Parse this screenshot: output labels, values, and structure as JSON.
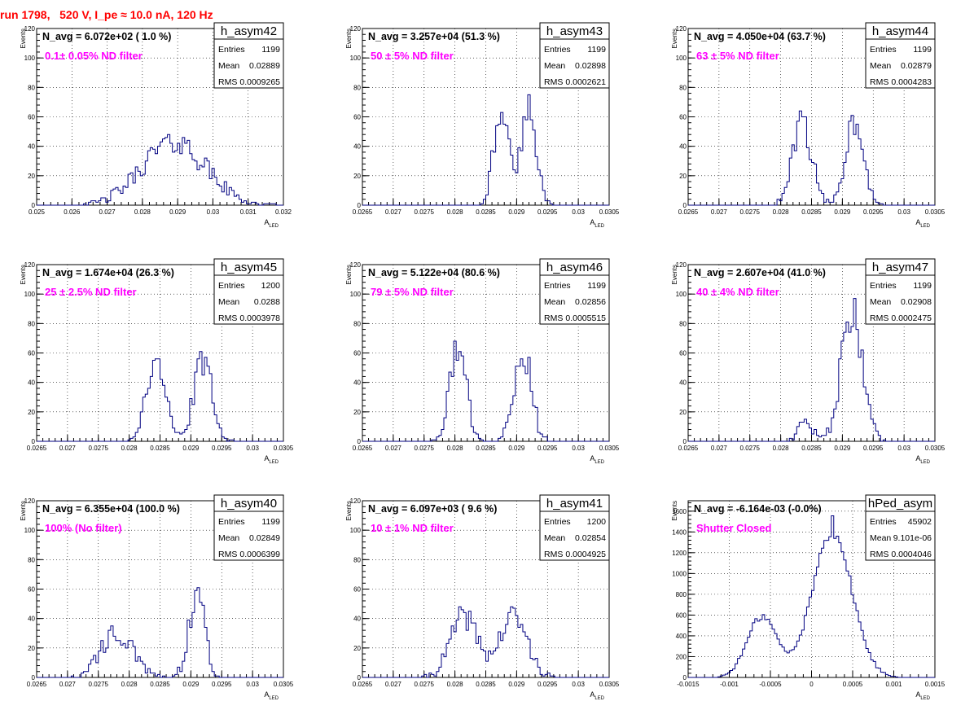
{
  "page": {
    "title": "run 1798,   520 V, I_pe ≈ 10.0 nA, 120 Hz",
    "colors": {
      "title": "#ff0000",
      "annotation": "#ff00ff",
      "histogram": "#000080",
      "grid": "#000000"
    }
  },
  "labels": {
    "ylabel": "Events",
    "xlabel_main": "A",
    "xlabel_sub": "LED",
    "entries": "Entries",
    "mean": "Mean",
    "rms": "RMS"
  },
  "chart_data": [
    {
      "type": "histogram",
      "name": "h_asym42",
      "navg": "N_avg = 6.072e+02 ( 1.0 %)",
      "note": "0.1± 0.05% ND filter",
      "stats": {
        "entries": "1199",
        "mean": "0.02889",
        "rms": "0.0009265"
      },
      "xlim": [
        0.025,
        0.032
      ],
      "ylim": [
        0,
        120
      ],
      "xticks": [
        0.025,
        0.026,
        0.027,
        0.028,
        0.029,
        0.03,
        0.031,
        0.032
      ],
      "xticklabels": [
        "0.025",
        "0.026",
        "0.027",
        "0.028",
        "0.029",
        "0.03",
        "0.031",
        "0.032"
      ],
      "yticks": [
        0,
        20,
        40,
        60,
        80,
        100,
        120
      ],
      "bin_width": 7e-05,
      "components": [
        {
          "mean": 0.02889,
          "sigma": 0.0009,
          "weight": 1.0
        }
      ],
      "peak": 48,
      "seed": 42
    },
    {
      "type": "histogram",
      "name": "h_asym43",
      "navg": "N_avg = 3.257e+04 (51.3 %)",
      "note": "50 ± 5% ND filter",
      "stats": {
        "entries": "1199",
        "mean": "0.02898",
        "rms": "0.0002621"
      },
      "xlim": [
        0.0265,
        0.0305
      ],
      "ylim": [
        0,
        120
      ],
      "xticks": [
        0.0265,
        0.027,
        0.0275,
        0.028,
        0.0285,
        0.029,
        0.0295,
        0.03,
        0.0305
      ],
      "xticklabels": [
        "0.0265",
        "0.027",
        "0.0275",
        "0.028",
        "0.0285",
        "0.029",
        "0.0295",
        "0.03",
        "0.0305"
      ],
      "yticks": [
        0,
        20,
        40,
        60,
        80,
        100,
        120
      ],
      "bin_width": 4e-05,
      "components": [
        {
          "mean": 0.02875,
          "sigma": 0.00012,
          "weight": 1.0
        },
        {
          "mean": 0.0292,
          "sigma": 0.00012,
          "weight": 1.0
        }
      ],
      "peak": 75,
      "seed": 43
    },
    {
      "type": "histogram",
      "name": "h_asym44",
      "navg": "N_avg = 4.050e+04 (63.7 %)",
      "note": "63 ± 5% ND filter",
      "stats": {
        "entries": "1199",
        "mean": "0.02879",
        "rms": "0.0004283"
      },
      "xlim": [
        0.0265,
        0.0305
      ],
      "ylim": [
        0,
        120
      ],
      "xticks": [
        0.0265,
        0.027,
        0.0275,
        0.028,
        0.0285,
        0.029,
        0.0295,
        0.03,
        0.0305
      ],
      "xticklabels": [
        "0.0265",
        "0.027",
        "0.0275",
        "0.028",
        "0.0285",
        "0.029",
        "0.0295",
        "0.03",
        "0.0305"
      ],
      "yticks": [
        0,
        20,
        40,
        60,
        80,
        100,
        120
      ],
      "bin_width": 4e-05,
      "components": [
        {
          "mean": 0.02835,
          "sigma": 0.00015,
          "weight": 1.0
        },
        {
          "mean": 0.0292,
          "sigma": 0.00015,
          "weight": 1.0
        }
      ],
      "peak": 64,
      "seed": 44
    },
    {
      "type": "histogram",
      "name": "h_asym45",
      "navg": "N_avg = 1.674e+04 (26.3 %)",
      "note": "25 ± 2.5% ND filter",
      "stats": {
        "entries": "1200",
        "mean": "0.0288",
        "rms": "0.0003978"
      },
      "xlim": [
        0.0265,
        0.0305
      ],
      "ylim": [
        0,
        120
      ],
      "xticks": [
        0.0265,
        0.027,
        0.0275,
        0.028,
        0.0285,
        0.029,
        0.0295,
        0.03,
        0.0305
      ],
      "xticklabels": [
        "0.0265",
        "0.027",
        "0.0275",
        "0.028",
        "0.0285",
        "0.029",
        "0.0295",
        "0.03",
        "0.0305"
      ],
      "yticks": [
        0,
        20,
        40,
        60,
        80,
        100,
        120
      ],
      "bin_width": 4e-05,
      "components": [
        {
          "mean": 0.02843,
          "sigma": 0.00015,
          "weight": 1.0
        },
        {
          "mean": 0.0292,
          "sigma": 0.00015,
          "weight": 1.0
        }
      ],
      "peak": 61,
      "seed": 45
    },
    {
      "type": "histogram",
      "name": "h_asym46",
      "navg": "N_avg = 5.122e+04 (80.6 %)",
      "note": "79 ± 5% ND filter",
      "stats": {
        "entries": "1199",
        "mean": "0.02856",
        "rms": "0.0005515"
      },
      "xlim": [
        0.0265,
        0.0305
      ],
      "ylim": [
        0,
        120
      ],
      "xticks": [
        0.0265,
        0.027,
        0.0275,
        0.028,
        0.0285,
        0.029,
        0.0295,
        0.03,
        0.0305
      ],
      "xticklabels": [
        "0.0265",
        "0.027",
        "0.0275",
        "0.028",
        "0.0285",
        "0.029",
        "0.0295",
        "0.03",
        "0.0305"
      ],
      "yticks": [
        0,
        20,
        40,
        60,
        80,
        100,
        120
      ],
      "bin_width": 4e-05,
      "components": [
        {
          "mean": 0.02805,
          "sigma": 0.00014,
          "weight": 1.0
        },
        {
          "mean": 0.0291,
          "sigma": 0.00014,
          "weight": 1.0
        }
      ],
      "peak": 68,
      "seed": 46
    },
    {
      "type": "histogram",
      "name": "h_asym47",
      "navg": "N_avg = 2.607e+04 (41.0 %)",
      "note": "40 ± 4% ND filter",
      "stats": {
        "entries": "1199",
        "mean": "0.02908",
        "rms": "0.0002475"
      },
      "xlim": [
        0.0265,
        0.0305
      ],
      "ylim": [
        0,
        120
      ],
      "xticks": [
        0.0265,
        0.027,
        0.0275,
        0.028,
        0.0285,
        0.029,
        0.0295,
        0.03,
        0.0305
      ],
      "xticklabels": [
        "0.0265",
        "0.027",
        "0.0275",
        "0.028",
        "0.0285",
        "0.029",
        "0.0295",
        "0.03",
        "0.0305"
      ],
      "yticks": [
        0,
        20,
        40,
        60,
        80,
        100,
        120
      ],
      "bin_width": 4e-05,
      "components": [
        {
          "mean": 0.0284,
          "sigma": 0.00012,
          "weight": 0.15
        },
        {
          "mean": 0.02915,
          "sigma": 0.00017,
          "weight": 1.0
        }
      ],
      "peak": 97,
      "seed": 47
    },
    {
      "type": "histogram",
      "name": "h_asym40",
      "navg": "N_avg = 6.355e+04 (100.0 %)",
      "note": "100% (No filter)",
      "stats": {
        "entries": "1199",
        "mean": "0.02849",
        "rms": "0.0006399"
      },
      "xlim": [
        0.0265,
        0.0305
      ],
      "ylim": [
        0,
        120
      ],
      "xticks": [
        0.0265,
        0.027,
        0.0275,
        0.028,
        0.0285,
        0.029,
        0.0295,
        0.03,
        0.0305
      ],
      "xticklabels": [
        "0.0265",
        "0.027",
        "0.0275",
        "0.028",
        "0.0285",
        "0.029",
        "0.0295",
        "0.03",
        "0.0305"
      ],
      "yticks": [
        0,
        20,
        40,
        60,
        80,
        100,
        120
      ],
      "bin_width": 4e-05,
      "components": [
        {
          "mean": 0.0278,
          "sigma": 0.00025,
          "weight": 0.55
        },
        {
          "mean": 0.0291,
          "sigma": 0.00013,
          "weight": 1.0
        }
      ],
      "peak": 61,
      "seed": 40
    },
    {
      "type": "histogram",
      "name": "h_asym41",
      "navg": "N_avg = 6.097e+03 ( 9.6 %)",
      "note": "10 ± 1% ND filter",
      "stats": {
        "entries": "1200",
        "mean": "0.02854",
        "rms": "0.0004925"
      },
      "xlim": [
        0.0265,
        0.0305
      ],
      "ylim": [
        0,
        120
      ],
      "xticks": [
        0.0265,
        0.027,
        0.0275,
        0.028,
        0.0285,
        0.029,
        0.0295,
        0.03,
        0.0305
      ],
      "xticklabels": [
        "0.0265",
        "0.027",
        "0.0275",
        "0.028",
        "0.0285",
        "0.029",
        "0.0295",
        "0.03",
        "0.0305"
      ],
      "yticks": [
        0,
        20,
        40,
        60,
        80,
        100,
        120
      ],
      "bin_width": 4e-05,
      "components": [
        {
          "mean": 0.02815,
          "sigma": 0.00022,
          "weight": 1.0
        },
        {
          "mean": 0.02895,
          "sigma": 0.00022,
          "weight": 1.0
        }
      ],
      "peak": 46,
      "seed": 41
    },
    {
      "type": "histogram",
      "name": "hPed_asym",
      "navg": "N_avg = -6.164e-03 (-0.0%)",
      "note": "Shutter Closed",
      "stats": {
        "entries": "45902",
        "mean": "9.101e-06",
        "rms": "0.0004046"
      },
      "xlim": [
        -0.0015,
        0.0015
      ],
      "ylim": [
        0,
        1700
      ],
      "xticks": [
        -0.0015,
        -0.001,
        -0.0005,
        0,
        0.0005,
        0.001,
        0.0015
      ],
      "xticklabels": [
        "-0.0015",
        "-0.001",
        "-0.0005",
        "0",
        "0.0005",
        "0.001",
        "0.0015"
      ],
      "yticks": [
        0,
        200,
        400,
        600,
        800,
        1000,
        1200,
        1400,
        1600
      ],
      "bin_width": 3e-05,
      "components": [
        {
          "mean": -0.0006,
          "sigma": 0.00018,
          "weight": 0.42
        },
        {
          "mean": 0.00025,
          "sigma": 0.00024,
          "weight": 1.0
        }
      ],
      "peak": 1555,
      "seed": 48
    }
  ]
}
